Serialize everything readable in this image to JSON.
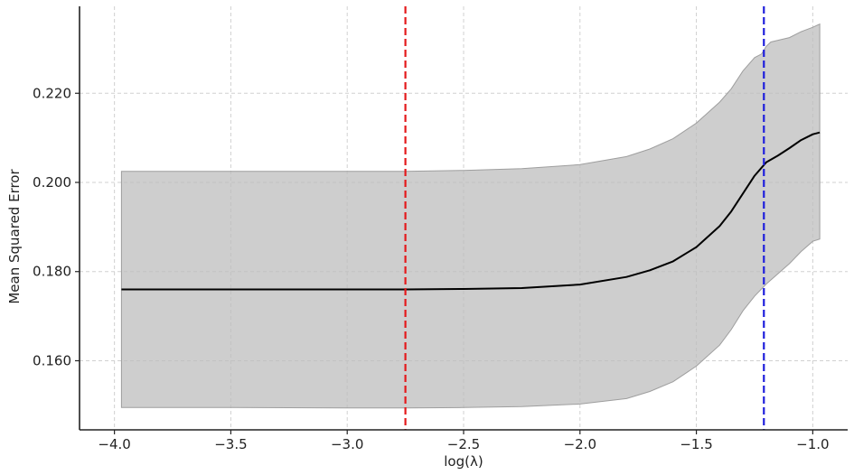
{
  "chart_data": {
    "type": "line",
    "title": "",
    "xlabel": "log(λ)",
    "ylabel": "Mean Squared Error",
    "xlim": [
      -4.15,
      -0.85
    ],
    "ylim": [
      0.1445,
      0.2395
    ],
    "grid": true,
    "x_ticks": [
      -4.0,
      -3.5,
      -3.0,
      -2.5,
      -2.0,
      -1.5,
      -1.0
    ],
    "x_tick_labels": [
      "−4.0",
      "−3.5",
      "−3.0",
      "−2.5",
      "−2.0",
      "−1.5",
      "−1.0"
    ],
    "y_ticks": [
      0.16,
      0.18,
      0.2,
      0.22
    ],
    "y_tick_labels": [
      "0.160",
      "0.180",
      "0.200",
      "0.220"
    ],
    "series": [
      {
        "role": "mean",
        "color": "#000000",
        "x": [
          -3.97,
          -3.5,
          -3.0,
          -2.75,
          -2.5,
          -2.25,
          -2.0,
          -1.8,
          -1.7,
          -1.6,
          -1.5,
          -1.4,
          -1.35,
          -1.3,
          -1.25,
          -1.2,
          -1.15,
          -1.1,
          -1.05,
          -1.0,
          -0.97
        ],
        "y": [
          0.176,
          0.176,
          0.176,
          0.176,
          0.1761,
          0.1763,
          0.1771,
          0.1788,
          0.1803,
          0.1823,
          0.1855,
          0.1902,
          0.1935,
          0.1975,
          0.2015,
          0.2045,
          0.206,
          0.2077,
          0.2095,
          0.2108,
          0.2112
        ]
      },
      {
        "role": "band-upper",
        "color": "#bdbdbd",
        "x": [
          -3.97,
          -3.5,
          -3.0,
          -2.75,
          -2.5,
          -2.25,
          -2.0,
          -1.8,
          -1.7,
          -1.6,
          -1.5,
          -1.4,
          -1.35,
          -1.3,
          -1.25,
          -1.22,
          -1.2,
          -1.18,
          -1.1,
          -1.05,
          -1.0,
          -0.97
        ],
        "y": [
          0.2025,
          0.2025,
          0.2025,
          0.2025,
          0.2027,
          0.2031,
          0.204,
          0.2058,
          0.2075,
          0.2098,
          0.2133,
          0.218,
          0.221,
          0.225,
          0.228,
          0.2288,
          0.2305,
          0.2315,
          0.2325,
          0.2338,
          0.2348,
          0.2355
        ]
      },
      {
        "role": "band-lower",
        "color": "#bdbdbd",
        "x": [
          -3.97,
          -3.5,
          -3.0,
          -2.75,
          -2.5,
          -2.25,
          -2.0,
          -1.8,
          -1.7,
          -1.6,
          -1.5,
          -1.4,
          -1.35,
          -1.3,
          -1.25,
          -1.2,
          -1.15,
          -1.1,
          -1.05,
          -1.0,
          -0.97
        ],
        "y": [
          0.1495,
          0.1495,
          0.1494,
          0.1494,
          0.1495,
          0.1497,
          0.1503,
          0.1515,
          0.1531,
          0.1553,
          0.1588,
          0.1635,
          0.167,
          0.1712,
          0.1745,
          0.1772,
          0.1795,
          0.1818,
          0.1845,
          0.1868,
          0.1873
        ]
      }
    ],
    "vlines": [
      {
        "x": -2.75,
        "color": "#e41a1c"
      },
      {
        "x": -1.21,
        "color": "#1f1fdc"
      }
    ]
  }
}
